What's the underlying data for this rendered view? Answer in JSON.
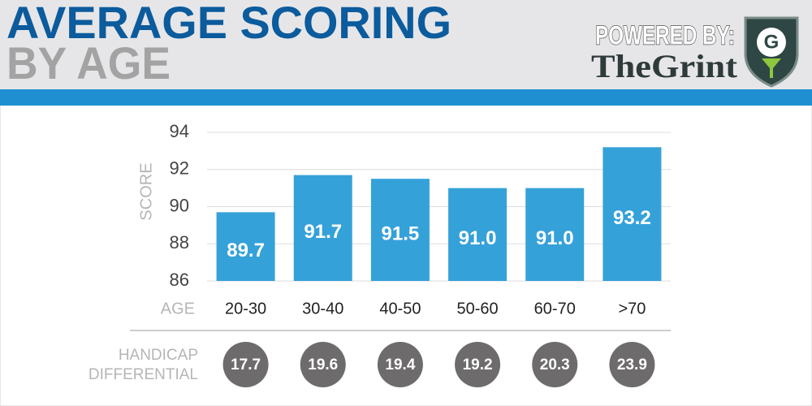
{
  "chart_data": {
    "type": "bar",
    "title": "AVERAGE SCORING",
    "subtitle": "BY AGE",
    "brand": {
      "powered_by": "POWERED BY:",
      "name": "TheGrint",
      "logo_letter": "G"
    },
    "y_label": "SCORE",
    "x_label": "AGE",
    "categories": [
      "20-30",
      "30-40",
      "40-50",
      "50-60",
      "60-70",
      ">70"
    ],
    "values": [
      89.7,
      91.7,
      91.5,
      91.0,
      91.0,
      93.2
    ],
    "value_labels": [
      "89.7",
      "91.7",
      "91.5",
      "91.0",
      "91.0",
      "93.2"
    ],
    "color": "#35a1d9",
    "ylim": [
      86,
      94
    ],
    "yticks": [
      86,
      88,
      90,
      92,
      94
    ],
    "grid": true,
    "handicap": {
      "label": [
        "HANDICAP",
        "DIFFERENTIAL"
      ],
      "values": [
        17.7,
        19.6,
        19.4,
        19.2,
        20.3,
        23.9
      ],
      "color": "#6d6b6b"
    }
  }
}
